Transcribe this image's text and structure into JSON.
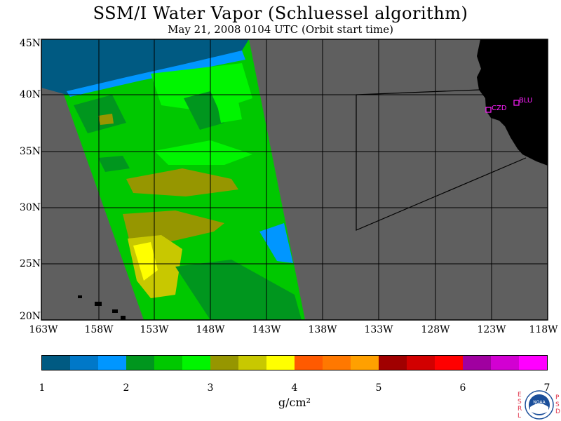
{
  "title": "SSM/I Water Vapor (Schluessel algorithm)",
  "subtitle": "May 21, 2008   0104 UTC   (Orbit start time)",
  "map": {
    "lat_labels": [
      "45N",
      "40N",
      "35N",
      "30N",
      "25N",
      "20N"
    ],
    "lon_labels": [
      "163W",
      "158W",
      "153W",
      "148W",
      "143W",
      "138W",
      "133W",
      "128W",
      "123W",
      "118W"
    ],
    "stations": [
      {
        "id": "CZD",
        "label": "CZD"
      },
      {
        "id": "BLU",
        "label": "BLU"
      }
    ],
    "colors": {
      "missing": "#5f5f5f",
      "land": "#000000",
      "station": "#ff20ff"
    }
  },
  "colorbar": {
    "colors": [
      "#005a82",
      "#0078c8",
      "#0096ff",
      "#00961e",
      "#00c800",
      "#00f500",
      "#969600",
      "#c8c800",
      "#ffff00",
      "#ff5a00",
      "#ff7800",
      "#ffa000",
      "#a00000",
      "#d20000",
      "#ff0000",
      "#a000a0",
      "#d200d2",
      "#ff00ff"
    ],
    "ticks": [
      "1",
      "2",
      "3",
      "4",
      "5",
      "6",
      "7"
    ],
    "units": "g/cm²"
  },
  "logo": {
    "left_text": "ESRL",
    "right_text": "PSD",
    "center_text": "NOAA"
  }
}
